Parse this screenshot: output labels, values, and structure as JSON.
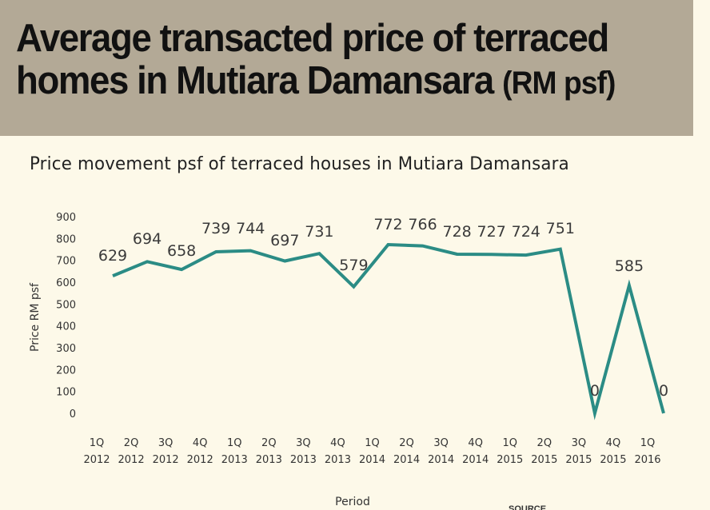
{
  "header": {
    "title_line1": "Average transacted price of terraced",
    "title_line2": "homes in Mutiara Damansara",
    "title_unit": "(RM psf)"
  },
  "chart_data": {
    "type": "line",
    "title": "Price movement psf of terraced houses in Mutiara Damansara",
    "xlabel": "Period",
    "ylabel": "Price RM psf",
    "ylim": [
      0,
      900
    ],
    "yticks": [
      0,
      100,
      200,
      300,
      400,
      500,
      600,
      700,
      800,
      900
    ],
    "categories": [
      "1Q 2012",
      "2Q 2012",
      "3Q 2012",
      "4Q 2012",
      "1Q 2013",
      "2Q 2013",
      "3Q 2013",
      "4Q 2013",
      "1Q 2014",
      "2Q 2014",
      "3Q 2014",
      "4Q 2014",
      "1Q 2015",
      "2Q 2015",
      "3Q 2015",
      "4Q 2015",
      "1Q 2016"
    ],
    "series": [
      {
        "values": [
          629,
          694,
          658,
          739,
          744,
          697,
          731,
          579,
          772,
          766,
          728,
          727,
          724,
          751,
          0,
          585,
          0
        ]
      }
    ],
    "grid": false,
    "line_color": "#2b8c85"
  },
  "footer": {
    "source_fragment": "SOURCE"
  }
}
